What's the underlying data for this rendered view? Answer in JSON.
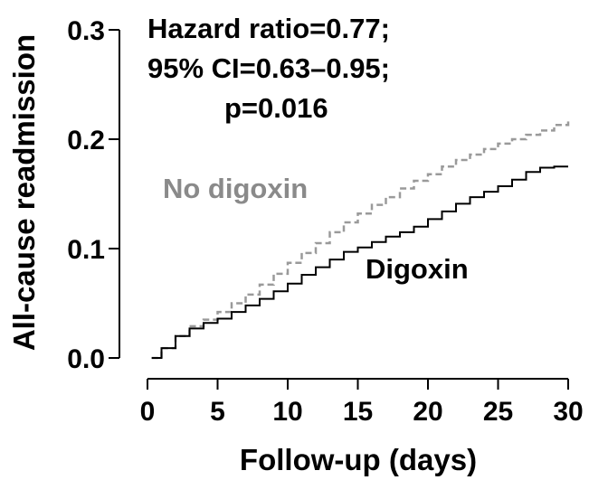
{
  "chart_data": {
    "type": "line",
    "xlabel": "Follow-up (days)",
    "ylabel": "All-cause readmission",
    "xlim": [
      0,
      30
    ],
    "ylim": [
      0,
      0.3
    ],
    "x_ticks": [
      0,
      5,
      10,
      15,
      20,
      25,
      30
    ],
    "x_tick_labels": [
      "0",
      "5",
      "10",
      "15",
      "20",
      "25",
      "30"
    ],
    "y_ticks": [
      0.0,
      0.1,
      0.2,
      0.3
    ],
    "y_tick_labels": [
      "0.0",
      "0.1",
      "0.2",
      "0.3"
    ],
    "grid": false,
    "annotation_lines": [
      "Hazard ratio=0.77;",
      "95% CI=0.63–0.95;",
      "p=0.016"
    ],
    "series": [
      {
        "name": "No digoxin",
        "color": "#9a9a9a",
        "style": "dashed-step",
        "x": [
          0.3,
          1,
          2,
          3,
          4,
          5,
          6,
          7,
          8,
          9,
          10,
          11,
          12,
          13,
          14,
          15,
          16,
          17,
          18,
          19,
          20,
          21,
          22,
          23,
          24,
          25,
          26,
          27,
          28,
          29,
          30
        ],
        "y": [
          0.0,
          0.009,
          0.02,
          0.029,
          0.035,
          0.042,
          0.05,
          0.058,
          0.067,
          0.077,
          0.087,
          0.096,
          0.105,
          0.115,
          0.124,
          0.132,
          0.14,
          0.147,
          0.155,
          0.162,
          0.168,
          0.175,
          0.181,
          0.186,
          0.191,
          0.196,
          0.2,
          0.204,
          0.208,
          0.213,
          0.219
        ]
      },
      {
        "name": "Digoxin",
        "color": "#000000",
        "style": "solid-step",
        "x": [
          0.3,
          1,
          2,
          3,
          4,
          5,
          6,
          7,
          8,
          9,
          10,
          11,
          12,
          13,
          14,
          15,
          16,
          17,
          18,
          19,
          20,
          21,
          22,
          23,
          24,
          25,
          26,
          27,
          28,
          29,
          30
        ],
        "y": [
          0.0,
          0.009,
          0.02,
          0.027,
          0.032,
          0.036,
          0.042,
          0.048,
          0.054,
          0.061,
          0.068,
          0.076,
          0.083,
          0.09,
          0.097,
          0.101,
          0.106,
          0.111,
          0.115,
          0.12,
          0.127,
          0.134,
          0.141,
          0.147,
          0.152,
          0.157,
          0.163,
          0.17,
          0.174,
          0.175,
          0.175
        ]
      }
    ]
  }
}
